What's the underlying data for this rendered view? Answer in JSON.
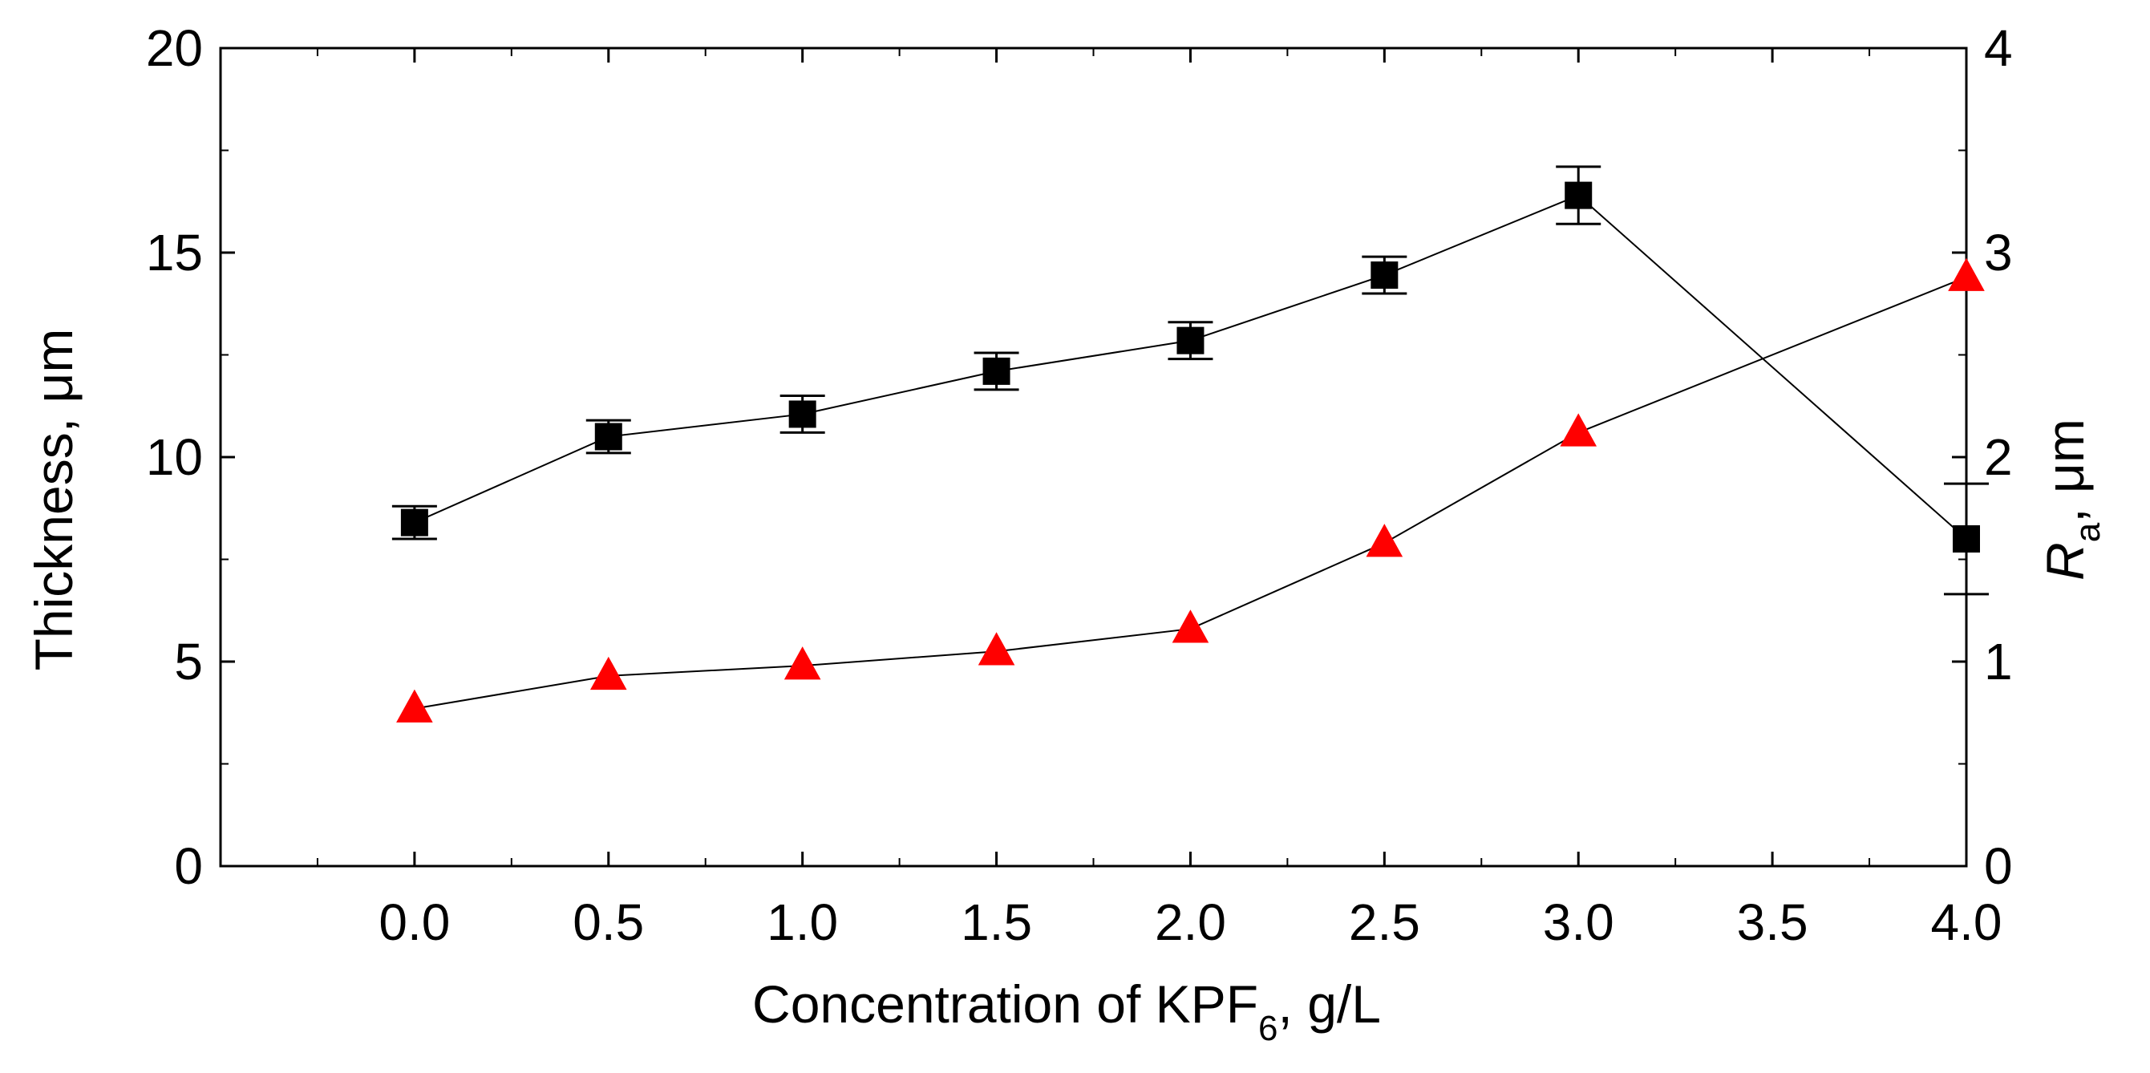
{
  "chart_data": {
    "type": "scatter",
    "x_label": {
      "text_before": "Concentration of  KPF",
      "subscript": "6",
      "text_after": ", g/L"
    },
    "y_label_left": "Thickness, μm",
    "y_label_right": {
      "italic": "R",
      "subscript": "a",
      "text_after": ", μm"
    },
    "xlim": [
      -0.5,
      4.0
    ],
    "ylim_left": [
      0,
      20
    ],
    "ylim_right": [
      0,
      4
    ],
    "x_ticks": [
      "0.0",
      "0.5",
      "1.0",
      "1.5",
      "2.0",
      "2.5",
      "3.0",
      "3.5",
      "4.0"
    ],
    "x_tick_values": [
      0.0,
      0.5,
      1.0,
      1.5,
      2.0,
      2.5,
      3.0,
      3.5,
      4.0
    ],
    "y_ticks_left": [
      "0",
      "5",
      "10",
      "15",
      "20"
    ],
    "y_tick_values_left": [
      0,
      5,
      10,
      15,
      20
    ],
    "y_ticks_right": [
      "0",
      "1",
      "2",
      "3",
      "4"
    ],
    "y_tick_values_right": [
      0,
      1,
      2,
      3,
      4
    ],
    "grid": false,
    "series": [
      {
        "axis": "left",
        "marker": "square",
        "color": "#000000",
        "x": [
          0.0,
          0.5,
          1.0,
          1.5,
          2.0,
          2.5,
          3.0,
          4.0
        ],
        "y": [
          8.4,
          10.5,
          11.05,
          12.1,
          12.85,
          14.45,
          16.4,
          8.0
        ],
        "error": [
          0.4,
          0.4,
          0.45,
          0.45,
          0.45,
          0.45,
          0.7,
          1.35
        ]
      },
      {
        "axis": "right",
        "marker": "triangle",
        "color": "#ff0000",
        "x": [
          0.0,
          0.5,
          1.0,
          1.5,
          2.0,
          2.5,
          3.0,
          4.0
        ],
        "y": [
          0.77,
          0.93,
          0.98,
          1.05,
          1.16,
          1.58,
          2.12,
          2.88
        ]
      }
    ]
  }
}
